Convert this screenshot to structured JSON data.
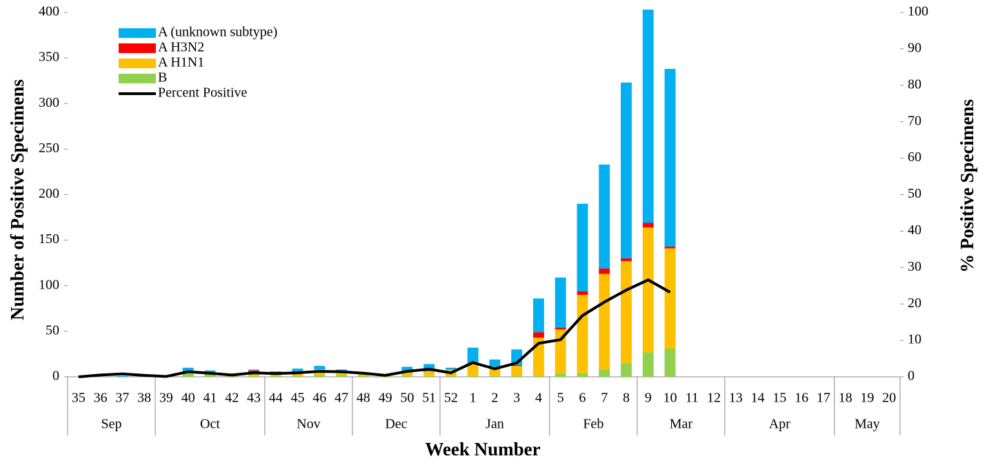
{
  "chart_data": {
    "type": "stacked_bar_line",
    "y_label": "Number of Positive Specimens",
    "y2_label": "% Positive Specimens",
    "x_label": "Week Number",
    "categories": [
      "35",
      "36",
      "37",
      "38",
      "39",
      "40",
      "41",
      "42",
      "43",
      "44",
      "45",
      "46",
      "47",
      "48",
      "49",
      "50",
      "51",
      "52",
      "1",
      "2",
      "3",
      "4",
      "5",
      "6",
      "7",
      "8",
      "9",
      "10",
      "11",
      "12",
      "13",
      "14",
      "15",
      "16",
      "17",
      "18",
      "19",
      "20"
    ],
    "x_groups": [
      {
        "label": "Sep",
        "span": 4
      },
      {
        "label": "Oct",
        "span": 5
      },
      {
        "label": "Nov",
        "span": 4
      },
      {
        "label": "Dec",
        "span": 4
      },
      {
        "label": "Jan",
        "span": 5
      },
      {
        "label": "Feb",
        "span": 4
      },
      {
        "label": "Mar",
        "span": 4
      },
      {
        "label": "Apr",
        "span": 5
      },
      {
        "label": "May",
        "span": 3
      }
    ],
    "series": [
      {
        "name": "A (unknown subtype)",
        "color": "#00B0F0",
        "kind": "bar",
        "values": [
          0,
          0,
          1,
          0,
          0,
          4,
          2,
          1,
          1,
          2,
          4,
          4,
          2,
          2,
          1,
          5,
          8,
          2,
          17,
          8,
          17,
          37,
          55,
          96,
          114,
          193,
          234,
          195,
          null,
          null,
          null,
          null,
          null,
          null,
          null,
          null,
          null,
          null
        ]
      },
      {
        "name": "A H3N2",
        "color": "#FF0000",
        "kind": "bar",
        "values": [
          0,
          0,
          0,
          0,
          0,
          0,
          0,
          0,
          4,
          0,
          0,
          0,
          0,
          0,
          0,
          0,
          0,
          0,
          0,
          0,
          1,
          6,
          2,
          4,
          6,
          3,
          5,
          2,
          null,
          null,
          null,
          null,
          null,
          null,
          null,
          null,
          null,
          null
        ]
      },
      {
        "name": "A H1N1",
        "color": "#FFC000",
        "kind": "bar",
        "values": [
          0,
          0,
          0,
          0,
          0,
          2,
          2,
          1,
          2,
          3,
          4,
          6,
          4,
          2,
          1,
          5,
          5,
          7,
          14,
          10,
          11,
          42,
          48,
          86,
          105,
          112,
          137,
          110,
          null,
          null,
          null,
          null,
          null,
          null,
          null,
          null,
          null,
          null
        ]
      },
      {
        "name": "B",
        "color": "#92D050",
        "kind": "bar",
        "values": [
          0,
          0,
          0,
          0,
          0,
          4,
          3,
          1,
          1,
          1,
          1,
          2,
          2,
          1,
          0,
          1,
          1,
          1,
          1,
          1,
          1,
          1,
          4,
          4,
          8,
          15,
          27,
          31,
          null,
          null,
          null,
          null,
          null,
          null,
          null,
          null,
          null,
          null
        ]
      },
      {
        "name": "Percent Positive",
        "color": "#000000",
        "kind": "line",
        "axis": "y2",
        "values": [
          0,
          0.5,
          0.8,
          0.4,
          0.1,
          1.4,
          1.0,
          0.5,
          1.1,
          0.9,
          1.1,
          1.5,
          1.4,
          1.0,
          0.4,
          1.5,
          2.1,
          1.1,
          3.9,
          2.2,
          3.8,
          9.2,
          10.2,
          16.8,
          20.5,
          23.8,
          26.6,
          23.2,
          null,
          null,
          null,
          null,
          null,
          null,
          null,
          null,
          null,
          null
        ]
      }
    ],
    "ylim": [
      0,
      400
    ],
    "yticks": [
      0,
      50,
      100,
      150,
      200,
      250,
      300,
      350,
      400
    ],
    "y2lim": [
      0,
      100
    ],
    "y2ticks": [
      0,
      10,
      20,
      30,
      40,
      50,
      60,
      70,
      80,
      90,
      100
    ],
    "legend": "upper left"
  }
}
